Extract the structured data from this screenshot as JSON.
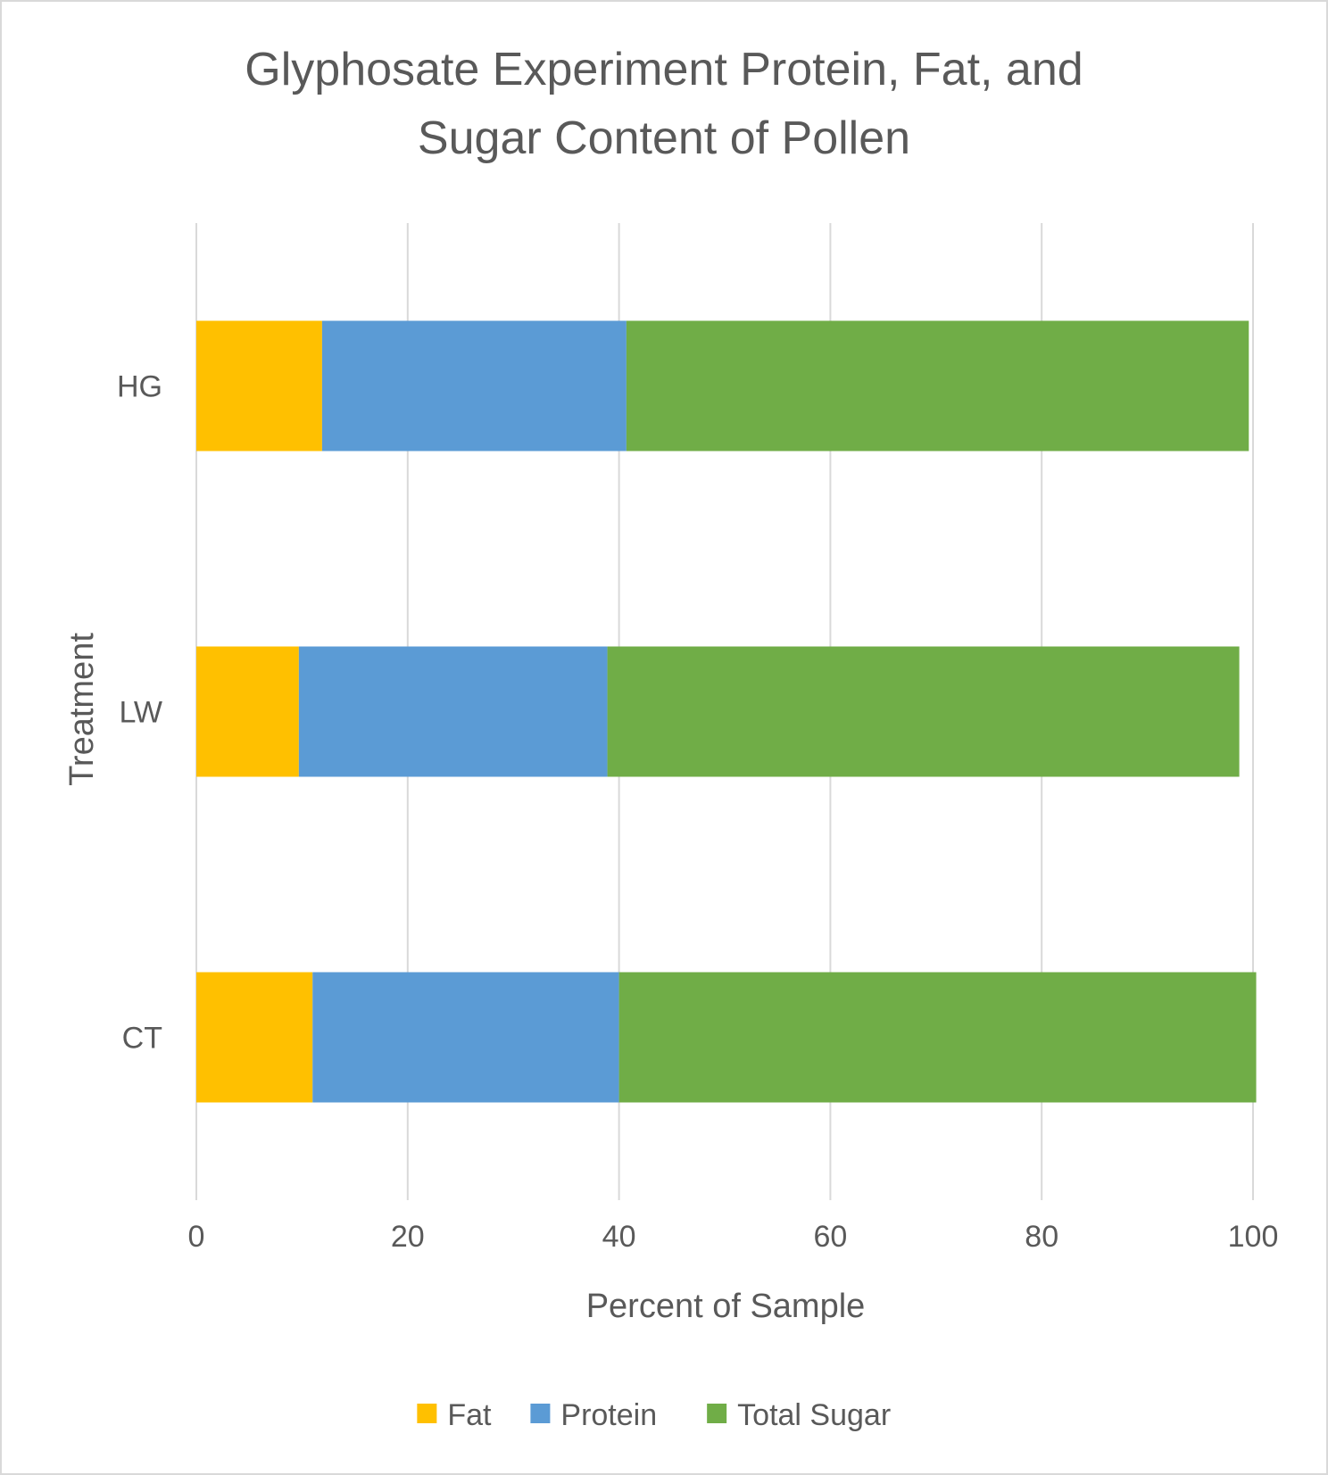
{
  "chart_data": {
    "type": "bar",
    "orientation": "horizontal",
    "stacked": true,
    "title": "Glyphosate Experiment Protein, Fat, and Sugar Content of Pollen",
    "title_lines": [
      "Glyphosate Experiment Protein, Fat, and",
      "Sugar Content of Pollen"
    ],
    "xlabel": "Percent of Sample",
    "ylabel": "Treatment",
    "xlim": [
      0,
      100
    ],
    "x_ticks": [
      0,
      20,
      40,
      60,
      80,
      100
    ],
    "grid": "vertical",
    "legend_position": "bottom",
    "categories": [
      "HG",
      "LW",
      "CT"
    ],
    "series": [
      {
        "name": "Fat",
        "color": "#FFC000",
        "values": [
          11.9,
          9.7,
          11.0
        ]
      },
      {
        "name": "Protein",
        "color": "#5B9BD5",
        "values": [
          28.8,
          29.2,
          29.0
        ]
      },
      {
        "name": "Total Sugar",
        "color": "#70AD47",
        "values": [
          58.9,
          59.8,
          60.3
        ]
      }
    ]
  }
}
